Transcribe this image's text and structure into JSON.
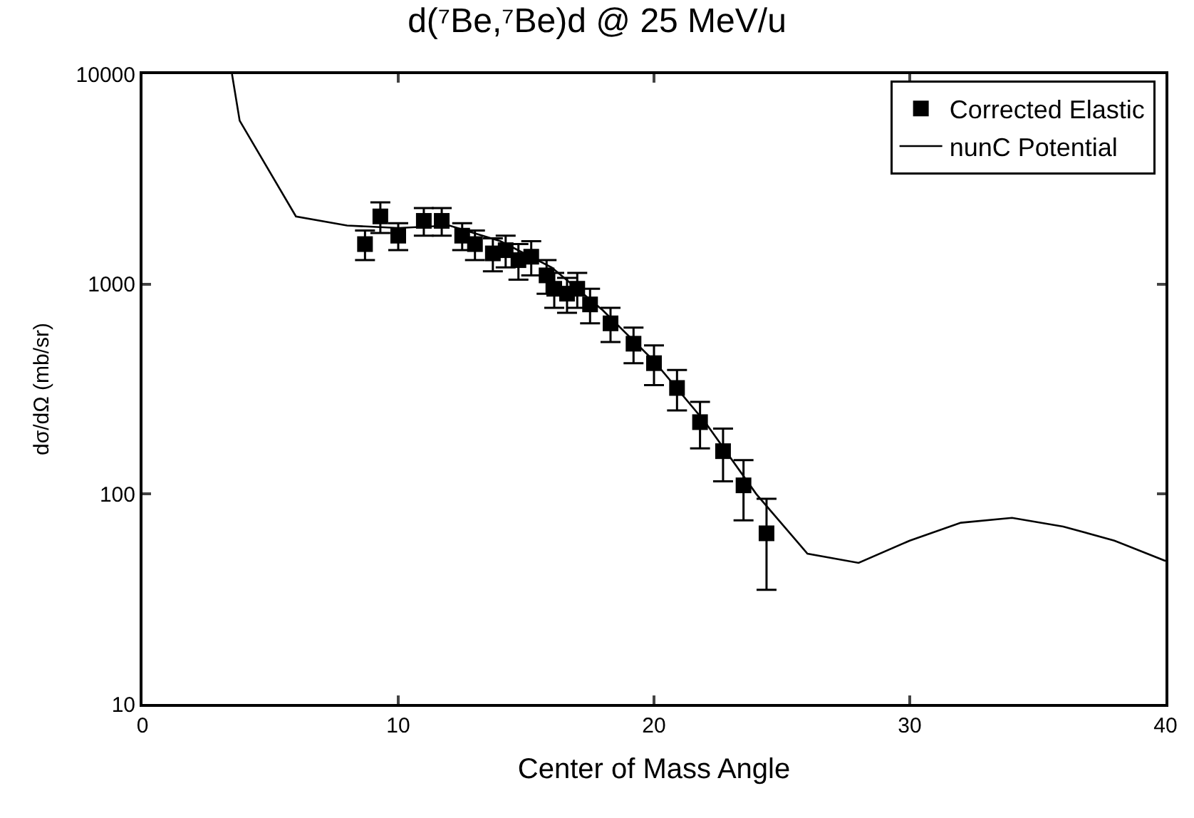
{
  "chart_data": {
    "type": "scatter",
    "title": "d(⁷Be,⁷Be)d @ 25 MeV/u",
    "xlabel": "Center of Mass Angle",
    "ylabel": "dσ/dΩ (mb/sr)",
    "xlim": [
      0,
      40
    ],
    "xticks": [
      0,
      10,
      20,
      30,
      40
    ],
    "ylim": [
      10,
      10000
    ],
    "yticks": [
      10,
      100,
      1000,
      10000
    ],
    "log": "y",
    "legend": "top right",
    "series": [
      {
        "name": "Corrected Elastic",
        "marker": "square",
        "color": "#000000",
        "x": [
          8.7,
          9.3,
          10.0,
          11.0,
          11.7,
          12.5,
          13.0,
          13.7,
          14.2,
          14.7,
          15.2,
          15.8,
          16.1,
          16.6,
          17.0,
          17.5,
          18.3,
          19.2,
          20.0,
          20.9,
          21.8,
          22.7,
          23.5,
          24.4
        ],
        "values": [
          1550,
          2100,
          1700,
          2000,
          2000,
          1700,
          1550,
          1400,
          1450,
          1300,
          1350,
          1100,
          950,
          900,
          950,
          800,
          650,
          520,
          420,
          320,
          220,
          160,
          110,
          65
        ],
        "errors": [
          250,
          350,
          250,
          300,
          300,
          250,
          250,
          250,
          250,
          250,
          250,
          200,
          180,
          170,
          180,
          150,
          120,
          100,
          90,
          70,
          55,
          45,
          35,
          30
        ]
      },
      {
        "name": "nunC Potential",
        "type": "line",
        "marker": "none",
        "line_style": "solid",
        "color": "#000000",
        "x": [
          3.5,
          3.8,
          6,
          8,
          10,
          12,
          14,
          16,
          18,
          20,
          22,
          24,
          26,
          28,
          30,
          32,
          34,
          36,
          38,
          40
        ],
        "values": [
          10000,
          6000,
          2100,
          1900,
          1850,
          1900,
          1600,
          1200,
          750,
          430,
          220,
          100,
          52,
          47,
          60,
          73,
          77,
          70,
          60,
          48
        ]
      }
    ]
  }
}
